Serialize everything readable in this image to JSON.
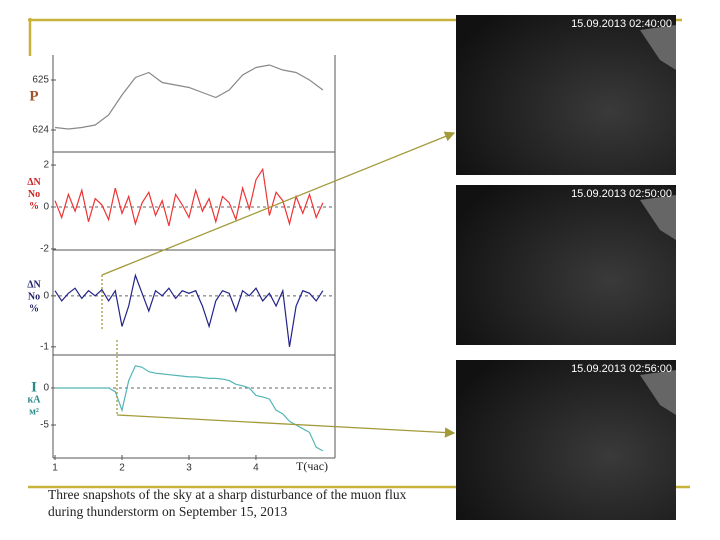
{
  "caption": "Three snapshots of the sky at a sharp disturbance of the muon flux during thunderstorm on September 15, 2013",
  "snapshots": [
    "15.09.2013 02:40:00",
    "15.09.2013 02:50:00",
    "15.09.2013 02:56:00"
  ],
  "chart_data": [
    {
      "type": "line",
      "ylabel": [
        "P"
      ],
      "label_color": "#a0522d",
      "color": "#888888",
      "x": [
        1.0,
        1.2,
        1.4,
        1.6,
        1.8,
        2.0,
        2.2,
        2.4,
        2.6,
        2.8,
        3.0,
        3.2,
        3.4,
        3.6,
        3.8,
        4.0,
        4.2,
        4.4,
        4.6,
        4.8,
        5.0
      ],
      "values": [
        624.05,
        624.02,
        624.05,
        624.1,
        624.3,
        624.7,
        625.05,
        625.15,
        624.95,
        624.9,
        624.85,
        624.75,
        624.65,
        624.8,
        625.1,
        625.25,
        625.3,
        625.2,
        625.15,
        625.0,
        624.8
      ],
      "xlim": [
        0.97,
        5.18
      ],
      "ylim": [
        623.56,
        625.44
      ],
      "yticks": [
        624,
        625
      ]
    },
    {
      "type": "line",
      "ylabel": [
        "ΔN",
        "No",
        "%"
      ],
      "label_color": "#cc2222",
      "color": "#ee3333",
      "x": [
        1.0,
        1.1,
        1.2,
        1.3,
        1.4,
        1.5,
        1.6,
        1.7,
        1.8,
        1.9,
        2.0,
        2.1,
        2.2,
        2.3,
        2.4,
        2.5,
        2.6,
        2.7,
        2.8,
        2.9,
        3.0,
        3.1,
        3.2,
        3.3,
        3.4,
        3.5,
        3.6,
        3.7,
        3.8,
        3.9,
        4.0,
        4.1,
        4.2,
        4.3,
        4.4,
        4.5,
        4.6,
        4.7,
        4.8,
        4.9,
        5.0
      ],
      "values": [
        0.3,
        -0.5,
        0.6,
        -0.2,
        0.8,
        -0.7,
        0.4,
        0.1,
        -0.6,
        0.9,
        -0.3,
        0.5,
        -0.8,
        0.2,
        0.7,
        -0.4,
        0.3,
        -0.9,
        0.6,
        0.1,
        -0.5,
        0.8,
        -0.2,
        0.4,
        -0.7,
        0.5,
        0.2,
        -0.6,
        0.9,
        -0.1,
        1.3,
        1.8,
        -0.4,
        0.7,
        0.3,
        -0.8,
        0.5,
        -0.3,
        0.6,
        -0.5,
        0.2
      ],
      "xlim": [
        0.97,
        5.18
      ],
      "ylim": [
        -2.05,
        2.48
      ],
      "yticks": [
        -2,
        0,
        2
      ],
      "reference_line": 0
    },
    {
      "type": "line",
      "ylabel": [
        "ΔN",
        "No",
        "%"
      ],
      "label_color": "#222266",
      "color": "#222288",
      "x": [
        1.0,
        1.1,
        1.2,
        1.3,
        1.4,
        1.5,
        1.6,
        1.7,
        1.8,
        1.9,
        2.0,
        2.1,
        2.2,
        2.3,
        2.4,
        2.5,
        2.6,
        2.7,
        2.8,
        2.9,
        3.0,
        3.1,
        3.2,
        3.3,
        3.4,
        3.5,
        3.6,
        3.7,
        3.8,
        3.9,
        4.0,
        4.1,
        4.2,
        4.3,
        4.4,
        4.5,
        4.6,
        4.7,
        4.8,
        4.9,
        5.0
      ],
      "values": [
        0.1,
        -0.1,
        0.05,
        0.15,
        -0.05,
        0.1,
        0.0,
        0.12,
        -0.1,
        0.1,
        -0.6,
        -0.2,
        0.4,
        0.05,
        -0.3,
        0.1,
        0.0,
        0.15,
        -0.05,
        0.1,
        0.05,
        0.1,
        -0.2,
        -0.6,
        -0.1,
        0.1,
        0.05,
        -0.3,
        0.1,
        0.0,
        0.15,
        -0.1,
        0.05,
        -0.2,
        0.1,
        -1.0,
        -0.2,
        0.1,
        0.05,
        -0.1,
        0.1
      ],
      "xlim": [
        0.97,
        5.18
      ],
      "ylim": [
        -1.16,
        0.8
      ],
      "yticks": [
        0,
        -1
      ],
      "reference_line": 0
    },
    {
      "type": "line",
      "ylabel": [
        "I",
        "кА",
        "м²"
      ],
      "label_color": "#2a8a8a",
      "color": "#55b5b5",
      "x": [
        1.0,
        1.1,
        1.2,
        1.3,
        1.4,
        1.5,
        1.6,
        1.7,
        1.8,
        1.9,
        2.0,
        2.1,
        2.2,
        2.3,
        2.4,
        2.5,
        2.6,
        2.7,
        2.8,
        2.9,
        3.0,
        3.1,
        3.2,
        3.3,
        3.4,
        3.5,
        3.6,
        3.7,
        3.8,
        3.9,
        4.0,
        4.1,
        4.2,
        4.3,
        4.4,
        4.5,
        4.6,
        4.7,
        4.8,
        4.9,
        5.0
      ],
      "values": [
        0,
        0,
        0,
        0,
        0,
        0,
        0,
        0,
        0,
        -0.5,
        -3,
        1.0,
        3.0,
        2.8,
        2.2,
        2.0,
        1.9,
        1.8,
        1.7,
        1.6,
        1.5,
        1.5,
        1.4,
        1.3,
        1.3,
        1.2,
        1.0,
        0.5,
        0.3,
        0.0,
        -1.0,
        -1.2,
        -1.5,
        -3.0,
        -3.5,
        -4.5,
        -5.0,
        -5.5,
        -6.0,
        -8.0,
        -8.5
      ],
      "xlim": [
        0.97,
        5.18
      ],
      "ylim": [
        -9.46,
        4.05
      ],
      "yticks": [
        0,
        -5
      ],
      "reference_line": 0,
      "xticks": [
        1,
        2,
        3,
        4
      ],
      "xlabel": "T(час)"
    }
  ]
}
